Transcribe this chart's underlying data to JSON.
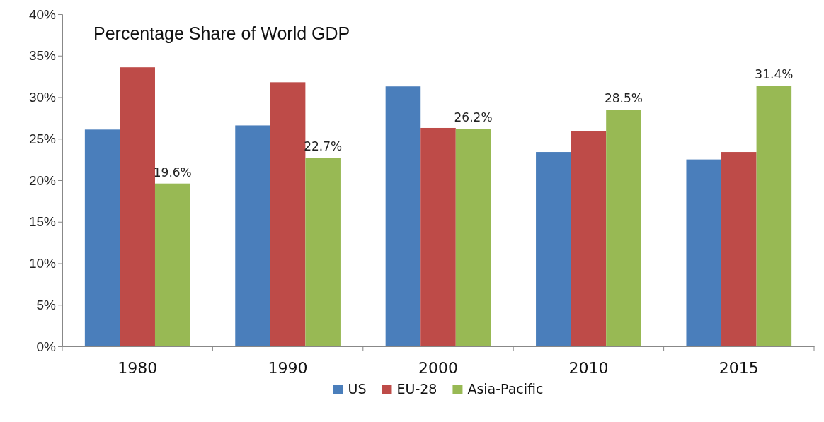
{
  "chart_data": {
    "type": "bar",
    "title": "Percentage Share of World GDP",
    "categories": [
      "1980",
      "1990",
      "2000",
      "2010",
      "2015"
    ],
    "series": [
      {
        "name": "US",
        "color": "#4a7ebb",
        "values": [
          26.1,
          26.6,
          31.3,
          23.4,
          22.5
        ]
      },
      {
        "name": "EU-28",
        "color": "#be4b48",
        "values": [
          33.6,
          31.8,
          26.3,
          25.9,
          23.4
        ]
      },
      {
        "name": "Asia-Pacific",
        "color": "#98b954",
        "values": [
          19.6,
          22.7,
          26.2,
          28.5,
          31.4
        ],
        "value_labels": [
          "19.6%",
          "22.7%",
          "26.2%",
          "28.5%",
          "31.4%"
        ]
      }
    ],
    "ylim": [
      0,
      40
    ],
    "yticks": [
      {
        "value": 0,
        "label": "0%"
      },
      {
        "value": 5,
        "label": "5%"
      },
      {
        "value": 10,
        "label": "10%"
      },
      {
        "value": 15,
        "label": "15%"
      },
      {
        "value": 20,
        "label": "20%"
      },
      {
        "value": 25,
        "label": "25%"
      },
      {
        "value": 30,
        "label": "30%"
      },
      {
        "value": 35,
        "label": "35%"
      },
      {
        "value": 40,
        "label": "40%"
      }
    ],
    "grid": false,
    "legend": "bottom"
  }
}
